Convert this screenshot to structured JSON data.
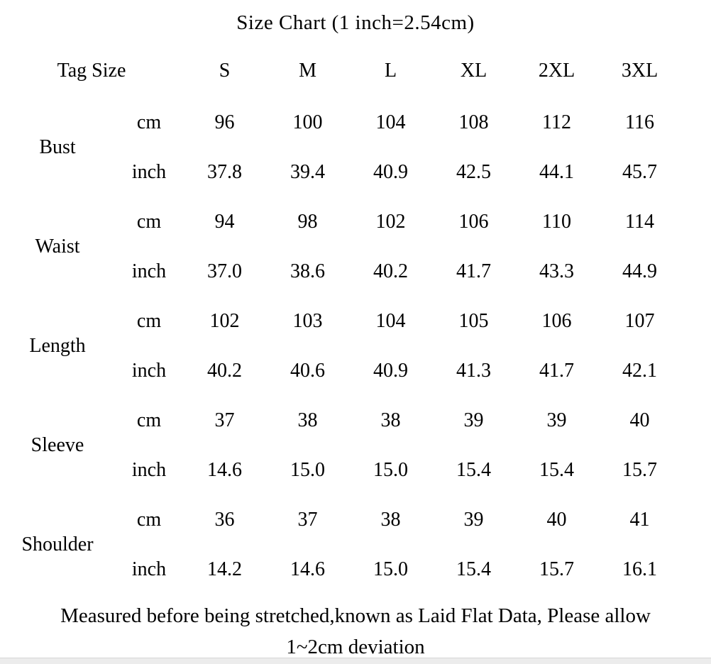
{
  "title": "Size Chart (1 inch=2.54cm)",
  "footer": {
    "line1": "Measured before being stretched,known as Laid Flat Data, Please allow",
    "line2": "1~2cm deviation"
  },
  "colors": {
    "text": "#000000",
    "background": "#ffffff",
    "bottom_strip": "#ececec"
  },
  "chart_data": {
    "type": "table",
    "title": "Size Chart (1 inch=2.54cm)",
    "corner_label": "Tag Size",
    "sizes": [
      "S",
      "M",
      "L",
      "XL",
      "2XL",
      "3XL"
    ],
    "unit_labels": {
      "cm": "cm",
      "inch": "inch"
    },
    "measurements": [
      {
        "name": "Bust",
        "cm": [
          "96",
          "100",
          "104",
          "108",
          "112",
          "116"
        ],
        "inch": [
          "37.8",
          "39.4",
          "40.9",
          "42.5",
          "44.1",
          "45.7"
        ]
      },
      {
        "name": "Waist",
        "cm": [
          "94",
          "98",
          "102",
          "106",
          "110",
          "114"
        ],
        "inch": [
          "37.0",
          "38.6",
          "40.2",
          "41.7",
          "43.3",
          "44.9"
        ]
      },
      {
        "name": "Length",
        "cm": [
          "102",
          "103",
          "104",
          "105",
          "106",
          "107"
        ],
        "inch": [
          "40.2",
          "40.6",
          "40.9",
          "41.3",
          "41.7",
          "42.1"
        ]
      },
      {
        "name": "Sleeve",
        "cm": [
          "37",
          "38",
          "38",
          "39",
          "39",
          "40"
        ],
        "inch": [
          "14.6",
          "15.0",
          "15.0",
          "15.4",
          "15.4",
          "15.7"
        ]
      },
      {
        "name": "Shoulder",
        "cm": [
          "36",
          "37",
          "38",
          "39",
          "40",
          "41"
        ],
        "inch": [
          "14.2",
          "14.6",
          "15.0",
          "15.4",
          "15.7",
          "16.1"
        ]
      }
    ],
    "note": "Measured before being stretched,known as Laid Flat Data, Please allow 1~2cm deviation"
  }
}
